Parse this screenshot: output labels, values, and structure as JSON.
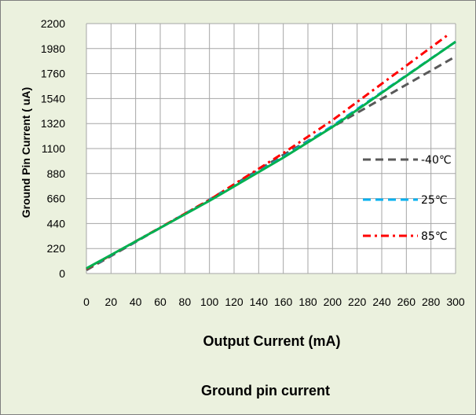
{
  "chart_data": {
    "type": "line",
    "title": "Ground pin current",
    "xlabel": "Output Current (mA)",
    "ylabel": "Ground Pin Current ( uA)",
    "xlim": [
      0,
      300
    ],
    "ylim": [
      0,
      2200
    ],
    "x_ticks": [
      0,
      20,
      40,
      60,
      80,
      100,
      120,
      140,
      160,
      180,
      200,
      220,
      240,
      260,
      280,
      300
    ],
    "y_ticks": [
      0,
      220,
      440,
      660,
      880,
      1100,
      1320,
      1540,
      1760,
      1980,
      2200
    ],
    "grid": true,
    "legend_position": "right",
    "series": [
      {
        "name": "-40℃",
        "style": "dashed",
        "color": "#595959",
        "x": [
          0,
          100,
          160,
          200,
          300
        ],
        "y": [
          30,
          650,
          1045,
          1290,
          1910
        ]
      },
      {
        "name": "25℃",
        "style": "dashed",
        "color": "#00b0f0",
        "x": [
          0,
          100,
          160,
          200,
          300
        ],
        "y": [
          40,
          645,
          1025,
          1300,
          2040
        ]
      },
      {
        "name": "85℃",
        "style": "dash-dot",
        "color": "#ff0000",
        "x": [
          0,
          100,
          160,
          200,
          295
        ],
        "y": [
          40,
          648,
          1060,
          1350,
          2110
        ]
      },
      {
        "name": "",
        "style": "solid",
        "color": "#00b050",
        "x": [
          0,
          100,
          160,
          200,
          300
        ],
        "y": [
          45,
          640,
          1020,
          1290,
          2040
        ]
      }
    ]
  }
}
